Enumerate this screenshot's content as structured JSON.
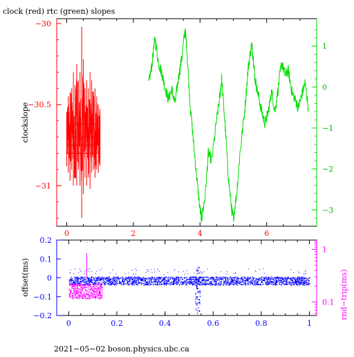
{
  "chart_data": [
    {
      "type": "line",
      "title": "clock (red) rtc (green) slopes",
      "xlabel": "",
      "ylabel": "clockslope",
      "xlim": [
        -0.3,
        7.5
      ],
      "ylim": [
        -31.25,
        -29.97
      ],
      "y2lim": [
        -3.4,
        1.67
      ],
      "x_ticks": [
        0,
        2,
        4,
        6
      ],
      "y_ticks": [
        -30,
        -30.5,
        -31
      ],
      "y_tick_labels": [
        "−30",
        "−30.5",
        "−31"
      ],
      "y2_ticks": [
        1,
        0,
        -1,
        -2,
        -3
      ],
      "y2_tick_labels": [
        "1",
        "0",
        "−1",
        "−2",
        "−3"
      ],
      "colors": {
        "clock": "#ff0000",
        "rtc": "#00dd00",
        "axes": "#000000"
      },
      "series": [
        {
          "axis": "left",
          "points": [
            [
              0.0,
              -30.7
            ],
            [
              0.05,
              -30.62
            ],
            [
              0.1,
              -30.76
            ],
            [
              0.15,
              -30.55
            ],
            [
              0.2,
              -30.68
            ],
            [
              0.25,
              -30.8
            ],
            [
              0.3,
              -30.5
            ],
            [
              0.35,
              -30.72
            ],
            [
              0.4,
              -30.6
            ],
            [
              0.45,
              -30.85
            ],
            [
              0.5,
              -30.45
            ],
            [
              0.55,
              -30.7
            ],
            [
              0.6,
              -30.58
            ],
            [
              0.65,
              -30.78
            ],
            [
              0.7,
              -30.62
            ],
            [
              0.75,
              -30.7
            ],
            [
              0.8,
              -30.55
            ],
            [
              0.85,
              -30.75
            ],
            [
              0.9,
              -30.65
            ],
            [
              0.95,
              -30.72
            ],
            [
              1.0,
              -30.68
            ]
          ],
          "envelope": [
            [
              -30.88,
              -30.55
            ],
            [
              -30.92,
              -30.45
            ],
            [
              -30.97,
              -30.42
            ],
            [
              -30.9,
              -30.4
            ],
            [
              -31.0,
              -30.3
            ],
            [
              -30.95,
              -30.38
            ],
            [
              -31.0,
              -30.25
            ],
            [
              -30.9,
              -30.35
            ],
            [
              -31.0,
              -30.3
            ],
            [
              -31.2,
              -30.02
            ],
            [
              -31.05,
              -30.22
            ],
            [
              -30.95,
              -30.4
            ],
            [
              -31.0,
              -30.35
            ],
            [
              -30.95,
              -30.4
            ],
            [
              -31.02,
              -30.3
            ],
            [
              -30.92,
              -30.35
            ],
            [
              -30.9,
              -30.42
            ],
            [
              -30.95,
              -30.4
            ],
            [
              -30.9,
              -30.45
            ],
            [
              -30.92,
              -30.5
            ],
            [
              -30.88,
              -30.55
            ]
          ]
        },
        {
          "axis": "right",
          "points": [
            [
              2.45,
              0.05
            ],
            [
              2.55,
              0.5
            ],
            [
              2.65,
              1.2
            ],
            [
              2.75,
              0.6
            ],
            [
              2.85,
              0.35
            ],
            [
              2.95,
              0.0
            ],
            [
              3.05,
              -0.3
            ],
            [
              3.15,
              -0.05
            ],
            [
              3.25,
              -0.4
            ],
            [
              3.35,
              0.2
            ],
            [
              3.45,
              0.7
            ],
            [
              3.55,
              1.4
            ],
            [
              3.6,
              1.0
            ],
            [
              3.7,
              -0.4
            ],
            [
              3.8,
              -1.3
            ],
            [
              3.9,
              -2.2
            ],
            [
              4.0,
              -3.0
            ],
            [
              4.05,
              -3.2
            ],
            [
              4.15,
              -2.7
            ],
            [
              4.25,
              -1.6
            ],
            [
              4.35,
              -1.8
            ],
            [
              4.5,
              -0.8
            ],
            [
              4.6,
              -0.2
            ],
            [
              4.65,
              0.2
            ],
            [
              4.75,
              -0.9
            ],
            [
              4.85,
              -2.2
            ],
            [
              4.95,
              -3.0
            ],
            [
              5.0,
              -3.2
            ],
            [
              5.1,
              -2.6
            ],
            [
              5.2,
              -1.6
            ],
            [
              5.35,
              -0.5
            ],
            [
              5.45,
              0.5
            ],
            [
              5.55,
              1.05
            ],
            [
              5.6,
              0.7
            ],
            [
              5.65,
              0.2
            ],
            [
              5.75,
              -0.2
            ],
            [
              5.85,
              -0.6
            ],
            [
              5.95,
              -0.9
            ],
            [
              6.05,
              -0.6
            ],
            [
              6.15,
              -0.1
            ],
            [
              6.25,
              -0.6
            ],
            [
              6.35,
              0.0
            ],
            [
              6.45,
              0.6
            ],
            [
              6.55,
              0.3
            ],
            [
              6.65,
              0.4
            ],
            [
              6.75,
              -0.1
            ],
            [
              6.85,
              -0.3
            ],
            [
              6.95,
              -0.5
            ],
            [
              7.05,
              -0.2
            ],
            [
              7.15,
              0.1
            ],
            [
              7.25,
              -0.5
            ]
          ]
        }
      ]
    },
    {
      "type": "scatter",
      "xlabel": "",
      "ylabel": "offset(ms)",
      "y2label": "rnd−trip(ms)",
      "xlim": [
        -0.05,
        1.03
      ],
      "ylim": [
        -0.2,
        0.2
      ],
      "x_ticks": [
        0,
        0.2,
        0.4,
        0.6,
        0.8,
        1
      ],
      "x_tick_labels": [
        "0",
        "0.2",
        "0.4",
        "0.6",
        "0.8",
        "1"
      ],
      "y_ticks": [
        0.2,
        0.1,
        0,
        -0.1,
        -0.2
      ],
      "y_tick_labels": [
        "0.2",
        "0.1",
        "0",
        "−0.1",
        "−0.2"
      ],
      "y2_ticks": [
        1,
        0.1
      ],
      "y2_tick_labels": [
        "1",
        "0.1"
      ],
      "y2_scale": "log",
      "y2lim": [
        0.055,
        1.5
      ],
      "colors": {
        "offset": "#0000ff",
        "rtt": "#ff00ff",
        "axes": "#000000"
      },
      "series": [
        {
          "axis": "left",
          "description_band": {
            "x_range": [
              0.0,
              1.0
            ],
            "center": -0.015,
            "spread": 0.022
          },
          "spike": {
            "x": 0.535,
            "low": -0.19,
            "high": 0.06
          }
        },
        {
          "axis": "right",
          "band": {
            "x_range": [
              0.0,
              0.14
            ],
            "center": -0.07,
            "spread": 0.04
          },
          "spike": {
            "x": 0.075,
            "high": 0.13,
            "outlier": 0.19
          }
        }
      ]
    }
  ],
  "footer": {
    "text": "2021−05−02 boson.physics.ubc.ca"
  }
}
